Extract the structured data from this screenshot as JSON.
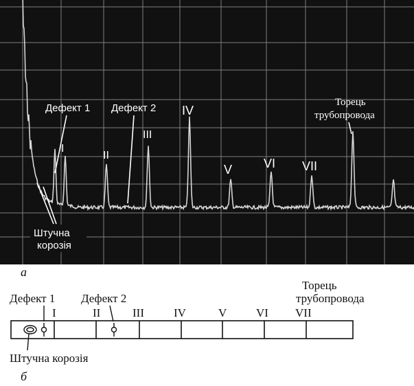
{
  "panel_a": {
    "caption": "а",
    "labels": {
      "defect1": "Дефект 1",
      "defect2": "Дефект 2",
      "pipe_end_line1": "Торець",
      "pipe_end_line2": "трубопровода",
      "corrosion_line1": "Штучна",
      "corrosion_line2": "корозія"
    },
    "peak_markers": [
      "I",
      "II",
      "III",
      "IV",
      "V",
      "VI",
      "VII"
    ]
  },
  "panel_b": {
    "caption": "б",
    "labels": {
      "defect1": "Дефект 1",
      "defect2": "Дефект 2",
      "pipe_end_line1": "Торець",
      "pipe_end_line2": "трубопровода",
      "corrosion": "Штучна корозія"
    },
    "section_markers": [
      "I",
      "II",
      "III",
      "IV",
      "V",
      "VI",
      "VII"
    ]
  },
  "colors": {
    "scope_background": "#111111",
    "grid": "#8a8a8a",
    "trace": "#d9d9d9",
    "annotation": "#ffffff"
  }
}
